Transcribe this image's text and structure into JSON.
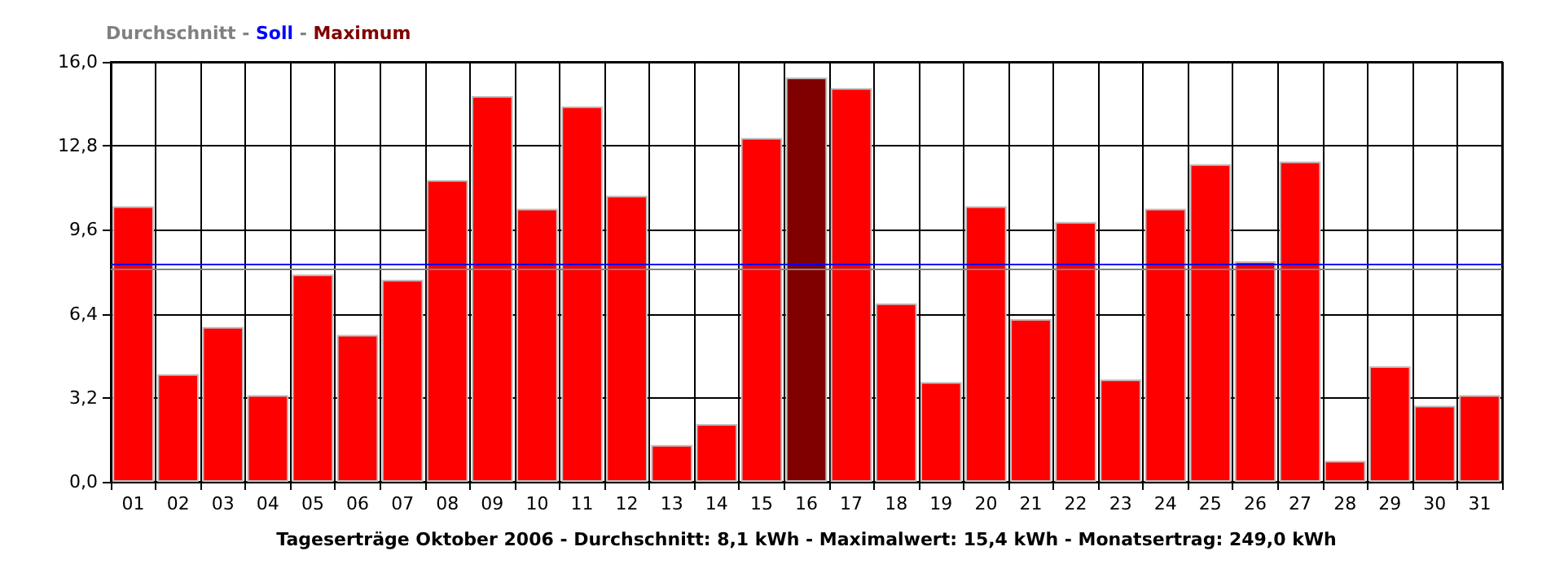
{
  "chart_data": {
    "type": "bar",
    "xlabel": "Tageserträge Oktober 2006 - Durchschnitt: 8,1 kWh - Maximalwert: 15,4 kWh - Monatsertrag: 249,0 kWh",
    "categories": [
      "01",
      "02",
      "03",
      "04",
      "05",
      "06",
      "07",
      "08",
      "09",
      "10",
      "11",
      "12",
      "13",
      "14",
      "15",
      "16",
      "17",
      "18",
      "19",
      "20",
      "21",
      "22",
      "23",
      "24",
      "25",
      "26",
      "27",
      "28",
      "29",
      "30",
      "31"
    ],
    "values": [
      10.5,
      4.1,
      5.9,
      3.3,
      7.9,
      5.6,
      7.7,
      11.5,
      14.7,
      10.4,
      14.3,
      10.9,
      1.4,
      2.2,
      13.1,
      15.4,
      15.0,
      6.8,
      3.8,
      10.5,
      6.2,
      9.9,
      3.9,
      10.4,
      12.1,
      8.4,
      12.2,
      0.8,
      4.4,
      2.9,
      3.3
    ],
    "colors": [
      "#ff0000",
      "#ff0000",
      "#ff0000",
      "#ff0000",
      "#ff0000",
      "#ff0000",
      "#ff0000",
      "#ff0000",
      "#ff0000",
      "#ff0000",
      "#ff0000",
      "#ff0000",
      "#ff0000",
      "#ff0000",
      "#ff0000",
      "#800000",
      "#ff0000",
      "#ff0000",
      "#ff0000",
      "#ff0000",
      "#ff0000",
      "#ff0000",
      "#ff0000",
      "#ff0000",
      "#ff0000",
      "#ff0000",
      "#ff0000",
      "#ff0000",
      "#ff0000",
      "#ff0000",
      "#ff0000"
    ],
    "ylim": [
      0,
      16
    ],
    "yticks": [
      {
        "value": 0,
        "label": "0,0"
      },
      {
        "value": 3.2,
        "label": "3,2"
      },
      {
        "value": 6.4,
        "label": "6,4"
      },
      {
        "value": 9.6,
        "label": "9,6"
      },
      {
        "value": 12.8,
        "label": "12,8"
      },
      {
        "value": 16,
        "label": "16,0"
      }
    ],
    "ref_lines": [
      {
        "axis": "y",
        "value": 8.1,
        "label": "Durchschnitt",
        "color": "#808080"
      },
      {
        "axis": "y",
        "value": 8.27,
        "label": "Soll",
        "color": "#0000ff"
      }
    ],
    "annotations": [
      "-",
      "-",
      "Maximum"
    ],
    "grid": true
  }
}
